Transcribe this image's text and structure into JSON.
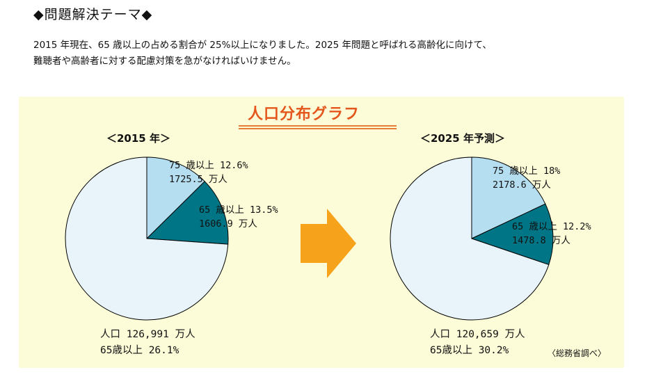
{
  "heading": "◆問題解決テーマ◆",
  "description": {
    "line1": "2015 年現在、65 歳以上の占める割合が 25%以上になりました。2025 年問題と呼ばれる高齢化に向けて、",
    "line2": "難聴者や高齢者に対する配慮対策を急がなければいけません。"
  },
  "source": "〈総務省調べ〉",
  "colors": {
    "panel": "#fdfcd8",
    "title": "#e3561c",
    "arrow": "#f7a21b",
    "pale": "#e8f4fa",
    "light_blue": "#b5def0",
    "teal": "#007585"
  },
  "chart_data": {
    "title": "人口分布グラフ",
    "charts": [
      {
        "type": "pie",
        "title": "＜2015 年＞",
        "slices": [
          {
            "label_line1": "75 歳以上 12.6%",
            "label_line2": "1725.5 万人",
            "value": 12.6,
            "color": "#b5def0"
          },
          {
            "label_line1": "65 歳以上 13.5%",
            "label_line2": "1606.9 万人",
            "value": 13.5,
            "color": "#007585"
          },
          {
            "value": 73.9,
            "color": "#e8f4fa"
          }
        ],
        "total_line1": "人口 126,991 万人",
        "total_line2": "65歳以上 26.1%"
      },
      {
        "type": "pie",
        "title": "＜2025 年予測＞",
        "slices": [
          {
            "label_line1": "75 歳以上 18%",
            "label_line2": "2178.6 万人",
            "value": 18,
            "color": "#b5def0"
          },
          {
            "label_line1": "65 歳以上 12.2%",
            "label_line2": "1478.8 万人",
            "value": 12.2,
            "color": "#007585"
          },
          {
            "value": 69.8,
            "color": "#e8f4fa"
          }
        ],
        "total_line1": "人口 120,659 万人",
        "total_line2": "65歳以上 30.2%"
      }
    ]
  }
}
